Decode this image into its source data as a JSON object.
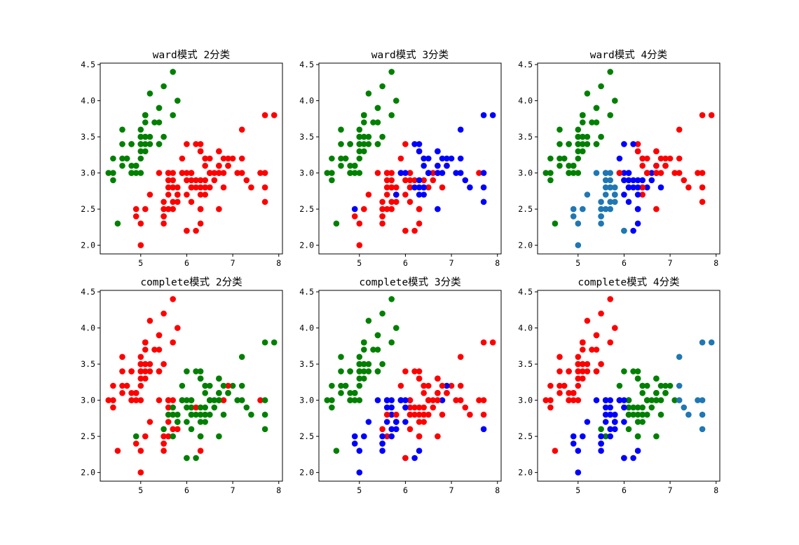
{
  "chart_data": [
    {
      "type": "scatter",
      "title": "ward模式 2分类",
      "colors": [
        "#ff0000",
        "#008000"
      ],
      "labels": "11111111111111111111111111111111111111111111111111000000000000000000000000000000000000000000000000000000000000000000000000000000000000000000000000000000"
    },
    {
      "type": "scatter",
      "title": "ward模式 3分类",
      "colors": [
        "#008000",
        "#ff0000",
        "#0000ff"
      ],
      "labels": "0000000000000000000000000000000000000000000000000021111111111111111111111111111111111111111111111111212221222222211222212122222122222212222122222212222221"
    },
    {
      "type": "scatter",
      "title": "ward模式 4分类",
      "colors": [
        "#008000",
        "#1f77b4",
        "#0000ff",
        "#ff0000"
      ],
      "labels": "000000000000000000000000000000000000000000000000003221212121121212112122222222211112122211121111121131323313333331133331313233223333322333233313332323"
    },
    {
      "type": "scatter",
      "title": "complete模式 2分类",
      "colors": [
        "#ff0000",
        "#008000"
      ],
      "labels": "000000000000000000000000000000000000000000000000001110101010011101011011111111100011011000110000100111111011111101111111011111111111111111111111111111"
    },
    {
      "type": "scatter",
      "title": "complete模式 3分类",
      "colors": [
        "#008000",
        "#0000ff",
        "#ff0000"
      ],
      "labels": "000000000000000000000000000000000000000000000000002221212121111212111222222222111111122111211111121121222212222211222212122222222222222222122212222221"
    },
    {
      "type": "scatter",
      "title": "complete模式 4分类",
      "colors": [
        "#ff0000",
        "#0000ff",
        "#008000",
        "#1f77b4"
      ],
      "labels": "000000000000000000000000000000000000000000000000002221212121111212111222222222111111122111211111121121222313232221122331213223222333222322122212222221"
    }
  ],
  "shared": {
    "xlim": [
      4.12,
      8.08
    ],
    "ylim": [
      1.88,
      4.52
    ],
    "xticks": [
      "5",
      "6",
      "7",
      "8"
    ],
    "yticks": [
      "2.0",
      "2.5",
      "3.0",
      "3.5",
      "4.0",
      "4.5"
    ],
    "points": [
      [
        5.1,
        3.5
      ],
      [
        4.9,
        3.0
      ],
      [
        4.7,
        3.2
      ],
      [
        4.6,
        3.1
      ],
      [
        5.0,
        3.6
      ],
      [
        5.4,
        3.9
      ],
      [
        4.6,
        3.4
      ],
      [
        5.0,
        3.4
      ],
      [
        4.4,
        2.9
      ],
      [
        4.9,
        3.1
      ],
      [
        5.4,
        3.7
      ],
      [
        4.8,
        3.4
      ],
      [
        4.8,
        3.0
      ],
      [
        4.3,
        3.0
      ],
      [
        5.8,
        4.0
      ],
      [
        5.7,
        4.4
      ],
      [
        5.4,
        3.9
      ],
      [
        5.1,
        3.5
      ],
      [
        5.7,
        3.8
      ],
      [
        5.1,
        3.8
      ],
      [
        5.4,
        3.4
      ],
      [
        5.1,
        3.7
      ],
      [
        4.6,
        3.6
      ],
      [
        5.1,
        3.3
      ],
      [
        4.8,
        3.4
      ],
      [
        5.0,
        3.0
      ],
      [
        5.0,
        3.4
      ],
      [
        5.2,
        3.5
      ],
      [
        5.2,
        3.4
      ],
      [
        4.7,
        3.2
      ],
      [
        4.8,
        3.1
      ],
      [
        5.4,
        3.4
      ],
      [
        5.2,
        4.1
      ],
      [
        5.5,
        4.2
      ],
      [
        4.9,
        3.1
      ],
      [
        5.0,
        3.2
      ],
      [
        5.5,
        3.5
      ],
      [
        4.9,
        3.1
      ],
      [
        4.4,
        3.0
      ],
      [
        5.1,
        3.4
      ],
      [
        5.0,
        3.5
      ],
      [
        4.5,
        2.3
      ],
      [
        4.4,
        3.2
      ],
      [
        5.0,
        3.5
      ],
      [
        5.1,
        3.8
      ],
      [
        4.8,
        3.0
      ],
      [
        5.1,
        3.8
      ],
      [
        4.6,
        3.2
      ],
      [
        5.3,
        3.7
      ],
      [
        5.0,
        3.3
      ],
      [
        7.0,
        3.2
      ],
      [
        6.4,
        3.2
      ],
      [
        6.9,
        3.1
      ],
      [
        5.5,
        2.3
      ],
      [
        6.5,
        2.8
      ],
      [
        5.7,
        2.8
      ],
      [
        6.3,
        3.3
      ],
      [
        4.9,
        2.4
      ],
      [
        6.6,
        2.9
      ],
      [
        5.2,
        2.7
      ],
      [
        5.0,
        2.0
      ],
      [
        5.9,
        3.0
      ],
      [
        6.0,
        2.2
      ],
      [
        6.1,
        2.9
      ],
      [
        5.6,
        2.9
      ],
      [
        6.7,
        3.1
      ],
      [
        5.6,
        3.0
      ],
      [
        5.8,
        2.7
      ],
      [
        6.2,
        2.2
      ],
      [
        5.6,
        2.5
      ],
      [
        5.9,
        3.2
      ],
      [
        6.1,
        2.8
      ],
      [
        6.3,
        2.5
      ],
      [
        6.1,
        2.8
      ],
      [
        6.4,
        2.9
      ],
      [
        6.6,
        3.0
      ],
      [
        6.8,
        2.8
      ],
      [
        6.7,
        3.0
      ],
      [
        6.0,
        2.9
      ],
      [
        5.7,
        2.6
      ],
      [
        5.5,
        2.4
      ],
      [
        5.5,
        2.4
      ],
      [
        5.8,
        2.7
      ],
      [
        6.0,
        2.7
      ],
      [
        5.4,
        3.0
      ],
      [
        6.0,
        3.4
      ],
      [
        6.7,
        3.1
      ],
      [
        6.3,
        2.3
      ],
      [
        5.6,
        3.0
      ],
      [
        5.5,
        2.5
      ],
      [
        5.5,
        2.6
      ],
      [
        6.1,
        3.0
      ],
      [
        5.8,
        2.6
      ],
      [
        5.0,
        2.3
      ],
      [
        5.6,
        2.7
      ],
      [
        5.7,
        3.0
      ],
      [
        5.7,
        2.9
      ],
      [
        6.2,
        2.9
      ],
      [
        5.1,
        2.5
      ],
      [
        5.7,
        2.8
      ],
      [
        6.3,
        3.3
      ],
      [
        5.8,
        2.7
      ],
      [
        7.1,
        3.0
      ],
      [
        6.3,
        2.9
      ],
      [
        6.5,
        3.0
      ],
      [
        7.6,
        3.0
      ],
      [
        4.9,
        2.5
      ],
      [
        7.3,
        2.9
      ],
      [
        6.7,
        2.5
      ],
      [
        7.2,
        3.6
      ],
      [
        6.5,
        3.2
      ],
      [
        6.4,
        2.7
      ],
      [
        6.8,
        3.0
      ],
      [
        5.7,
        2.5
      ],
      [
        5.8,
        2.8
      ],
      [
        6.4,
        3.2
      ],
      [
        6.5,
        3.0
      ],
      [
        7.7,
        3.8
      ],
      [
        7.7,
        2.6
      ],
      [
        6.0,
        2.2
      ],
      [
        6.9,
        3.2
      ],
      [
        5.6,
        2.8
      ],
      [
        7.7,
        2.8
      ],
      [
        6.3,
        2.7
      ],
      [
        6.7,
        3.3
      ],
      [
        7.2,
        3.2
      ],
      [
        6.2,
        2.8
      ],
      [
        6.1,
        3.0
      ],
      [
        6.4,
        2.8
      ],
      [
        7.2,
        3.0
      ],
      [
        7.4,
        2.8
      ],
      [
        7.9,
        3.8
      ],
      [
        6.4,
        2.8
      ],
      [
        6.3,
        2.8
      ],
      [
        6.1,
        2.6
      ],
      [
        7.7,
        3.0
      ],
      [
        6.3,
        3.4
      ],
      [
        6.4,
        3.1
      ],
      [
        6.0,
        3.0
      ],
      [
        6.9,
        3.1
      ],
      [
        6.7,
        3.1
      ],
      [
        6.9,
        3.1
      ],
      [
        5.8,
        2.7
      ],
      [
        6.8,
        3.2
      ],
      [
        6.7,
        3.3
      ],
      [
        6.7,
        3.0
      ],
      [
        6.3,
        2.5
      ],
      [
        6.5,
        3.0
      ],
      [
        6.2,
        3.4
      ],
      [
        5.9,
        3.0
      ]
    ]
  }
}
